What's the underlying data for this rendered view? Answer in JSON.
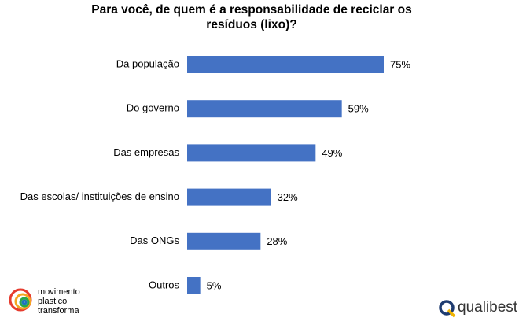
{
  "chart_data": {
    "type": "bar",
    "orientation": "horizontal",
    "title": "Para você, de quem é a responsabilidade de reciclar os resíduos (lixo)?",
    "categories": [
      "Da população",
      "Do governo",
      "Das empresas",
      "Das escolas/ instituições de ensino",
      "Das ONGs",
      "Outros"
    ],
    "values": [
      75,
      59,
      49,
      32,
      28,
      5
    ],
    "value_labels": [
      "75%",
      "59%",
      "49%",
      "32%",
      "28%",
      "5%"
    ],
    "color": "#4472c4"
  },
  "footer": {
    "left_logo": [
      "movimento",
      "plastico",
      "transforma"
    ],
    "right_logo": "qualibest"
  }
}
